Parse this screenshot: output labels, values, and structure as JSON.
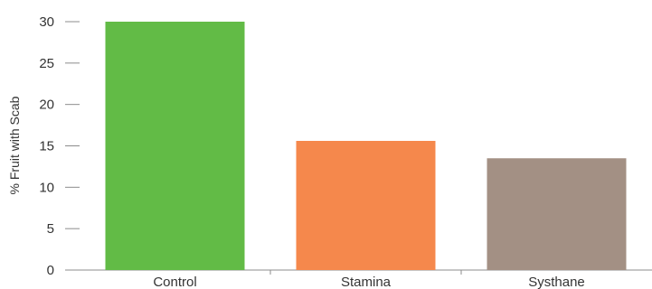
{
  "chart_data": {
    "type": "bar",
    "title": "",
    "xlabel": "",
    "ylabel": "% Fruit with Scab",
    "categories": [
      "Control",
      "Stamina",
      "Systhane"
    ],
    "values": [
      30,
      15.6,
      13.5
    ],
    "colors": [
      "#62bb46",
      "#f5884c",
      "#a39084"
    ],
    "yticks": [
      0,
      5,
      10,
      15,
      20,
      25,
      30
    ],
    "ylim": [
      0,
      30
    ],
    "grid": false,
    "legend": "none"
  }
}
